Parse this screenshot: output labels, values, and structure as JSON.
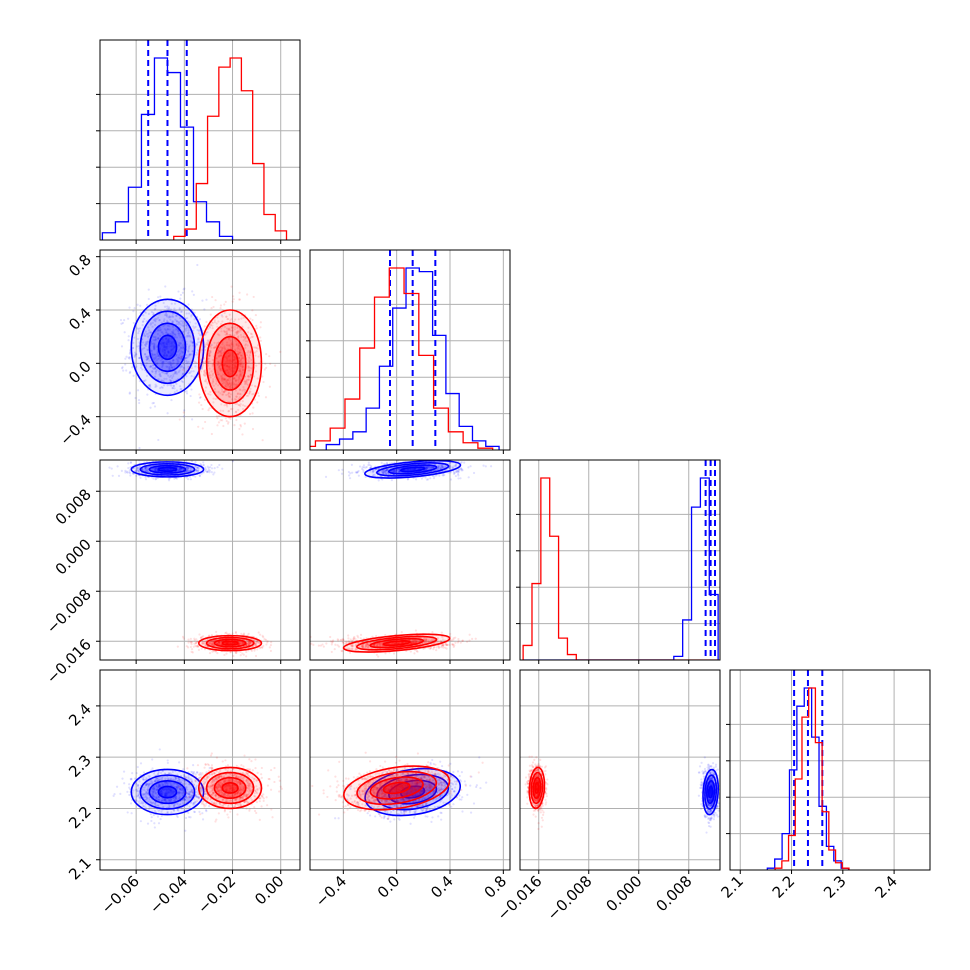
{
  "chart_data": {
    "type": "corner",
    "title": "",
    "grid": true,
    "colors": {
      "blue": "#0000ff",
      "red": "#ff0000"
    },
    "parameters": [
      {
        "range": [
          -0.075,
          0.008
        ],
        "ticks": [
          -0.06,
          -0.04,
          -0.02,
          0.0
        ],
        "tick_labels": [
          "−0.06",
          "−0.04",
          "−0.02",
          "0.00"
        ],
        "decimals": 2
      },
      {
        "range": [
          -0.65,
          0.85
        ],
        "ticks": [
          -0.4,
          0.0,
          0.4,
          0.8
        ],
        "tick_labels": [
          "−0.4",
          "0.0",
          "0.4",
          "0.8"
        ],
        "decimals": 1
      },
      {
        "range": [
          -0.019,
          0.013
        ],
        "ticks": [
          -0.016,
          -0.008,
          0.0,
          0.008
        ],
        "tick_labels": [
          "−0.016",
          "−0.008",
          "0.000",
          "0.008"
        ],
        "decimals": 3
      },
      {
        "range": [
          2.08,
          2.47
        ],
        "ticks": [
          2.1,
          2.2,
          2.3,
          2.4
        ],
        "tick_labels": [
          "2.1",
          "2.2",
          "2.3",
          "2.4"
        ],
        "decimals": 1
      }
    ],
    "series": [
      {
        "color": "blue",
        "means": [
          -0.047,
          0.12,
          0.0115,
          2.232
        ],
        "sds": [
          0.0075,
          0.18,
          0.0006,
          0.022
        ],
        "quantile_lines": [
          [
            -0.055,
            -0.047,
            -0.039
          ],
          [
            -0.05,
            0.12,
            0.29
          ],
          [
            0.0107,
            0.0115,
            0.0122
          ],
          [
            2.205,
            2.232,
            2.26
          ]
        ],
        "hist_heights": [
          [
            0.04,
            0.1,
            0.29,
            0.69,
            1.0,
            0.92,
            0.62,
            0.21,
            0.1,
            0.02
          ],
          [
            0.03,
            0.06,
            0.1,
            0.23,
            0.46,
            0.78,
            1.0,
            0.98,
            0.63,
            0.31,
            0.13,
            0.05,
            0.02
          ],
          [
            0.0,
            0.0,
            0.0,
            0.0,
            0.0,
            0.0,
            0.0,
            0.0,
            0.0,
            0.0,
            0.0,
            0.0,
            0.0,
            0.0,
            0.0,
            0.0,
            0.0,
            0.02,
            0.22,
            0.84,
            1.0,
            0.36
          ],
          [
            0.01,
            0.06,
            0.2,
            0.55,
            0.9,
            1.0,
            0.73,
            0.35,
            0.13,
            0.05,
            0.01
          ]
        ]
      },
      {
        "color": "red",
        "means": [
          -0.021,
          0.0,
          -0.0163,
          2.24
        ],
        "sds": [
          0.0065,
          0.2,
          0.0006,
          0.02
        ],
        "quantile_lines": [],
        "hist_heights": [
          [
            0.02,
            0.06,
            0.31,
            0.68,
            0.95,
            1.0,
            0.82,
            0.42,
            0.14,
            0.05
          ],
          [
            0.02,
            0.05,
            0.12,
            0.28,
            0.56,
            0.84,
            1.0,
            0.86,
            0.52,
            0.23,
            0.1,
            0.04,
            0.01
          ],
          [
            0.08,
            0.42,
            1.0,
            0.68,
            0.12,
            0.03,
            0.0,
            0.0,
            0.0,
            0.0,
            0.0,
            0.0,
            0.0,
            0.0,
            0.0,
            0.0,
            0.0,
            0.0,
            0.0,
            0.0,
            0.0,
            0.0
          ],
          [
            0.01,
            0.05,
            0.19,
            0.5,
            0.84,
            1.0,
            0.7,
            0.32,
            0.11,
            0.04,
            0.01
          ]
        ]
      }
    ],
    "correlations": {
      "1-0": 0.0,
      "2-0": 0.0,
      "2-1": 0.15,
      "3-0": 0.0,
      "3-1": 0.25,
      "3-2": -0.1
    }
  }
}
